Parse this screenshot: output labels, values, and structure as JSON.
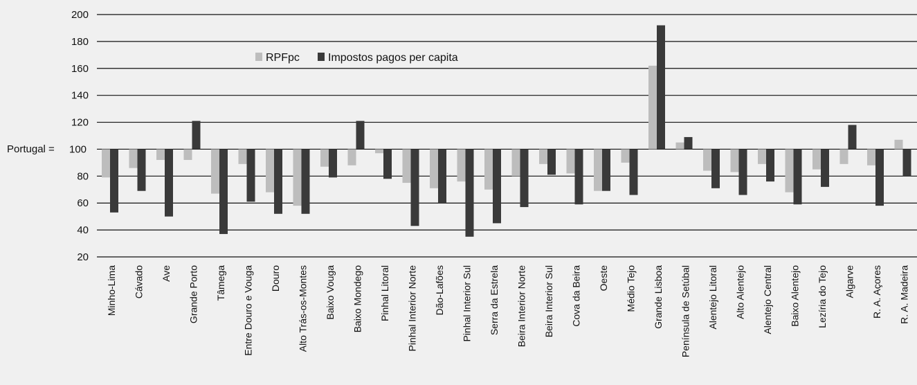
{
  "chart_data": {
    "type": "bar",
    "baseline_label": "Portugal =",
    "baseline": 100,
    "ylim": [
      20,
      200
    ],
    "yticks": [
      20,
      40,
      60,
      80,
      100,
      120,
      140,
      160,
      180,
      200
    ],
    "grid": true,
    "legend_position": "top-center",
    "categories": [
      "Minho-Lima",
      "Cávado",
      "Ave",
      "Grande Porto",
      "Tâmega",
      "Entre Douro e Vouga",
      "Douro",
      "Alto Trás-os-Montes",
      "Baixo Vouga",
      "Baixo Mondego",
      "Pinhal Litoral",
      "Pinhal Interior Norte",
      "Dão-Lafões",
      "Pinhal Interior Sul",
      "Serra da Estrela",
      "Beira Interior Norte",
      "Beira Interior Sul",
      "Cova da Beira",
      "Oeste",
      "Médio Tejo",
      "Grande Lisboa",
      "Península de Setúbal",
      "Alentejo Litoral",
      "Alto Alentejo",
      "Alentejo Central",
      "Baixo Alentejo",
      "Lezíria do Tejo",
      "Algarve",
      "R. A. Açores",
      "R. A. Madeira"
    ],
    "series": [
      {
        "name": "RPFpc",
        "color": "#bdbdbd",
        "values": [
          79,
          86,
          92,
          92,
          67,
          89,
          68,
          58,
          87,
          88,
          97,
          75,
          71,
          76,
          70,
          80,
          89,
          82,
          69,
          90,
          162,
          105,
          84,
          83,
          89,
          68,
          85,
          89,
          88,
          107
        ]
      },
      {
        "name": "Impostos pagos per capita",
        "color": "#3a3a3a",
        "values": [
          53,
          69,
          50,
          121,
          37,
          61,
          52,
          52,
          79,
          121,
          78,
          43,
          60,
          35,
          45,
          57,
          81,
          59,
          69,
          66,
          192,
          109,
          71,
          66,
          76,
          59,
          72,
          118,
          58,
          80
        ]
      }
    ]
  }
}
